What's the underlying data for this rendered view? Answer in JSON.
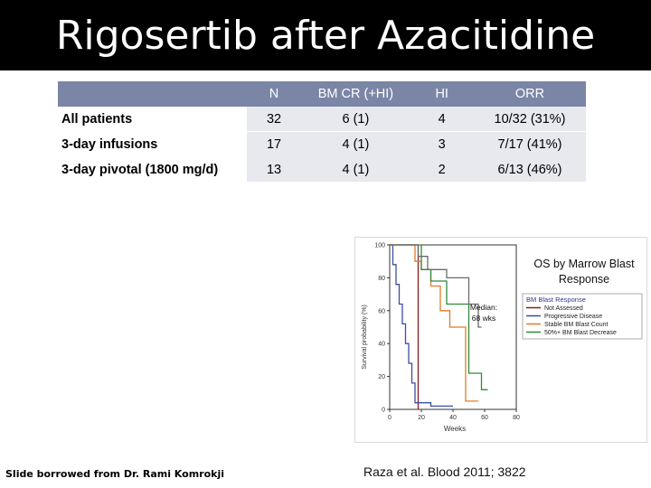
{
  "slide": {
    "title": "Rigosertib after Azacitidine",
    "footer_credit": "Slide borrowed from Dr. Rami Komrokji",
    "citation": "Raza et al. Blood 2011; 3822"
  },
  "table": {
    "headers": [
      "",
      "N",
      "BM CR (+HI)",
      "HI",
      "ORR"
    ],
    "rows": [
      {
        "label": "All patients",
        "n": "32",
        "bm_cr": "6 (1)",
        "hi": "4",
        "orr": "10/32 (31%)"
      },
      {
        "label": "3-day infusions",
        "n": "17",
        "bm_cr": "4 (1)",
        "hi": "3",
        "orr": "7/17 (41%)"
      },
      {
        "label": "3-day pivotal (1800 mg/d)",
        "n": "13",
        "bm_cr": "4 (1)",
        "hi": "2",
        "orr": "6/13 (46%)"
      }
    ],
    "header_color": "#7b86a6"
  },
  "chart_data": {
    "type": "line",
    "title": "OS by Marrow Blast Response",
    "xlabel": "Weeks",
    "ylabel": "Survival probability (%)",
    "xlim": [
      0,
      80
    ],
    "ylim": [
      0,
      100
    ],
    "xticks": [
      "0",
      "20",
      "40",
      "60",
      "80"
    ],
    "yticks": [
      "0",
      "20",
      "40",
      "60",
      "80",
      "100"
    ],
    "annotation": "Median: 68 wks",
    "legend_title": "BM Blast Response",
    "legend_position": "right",
    "series": [
      {
        "name": "Not Assessed",
        "color": "#8b1a1a",
        "x": [
          0,
          18,
          18
        ],
        "y": [
          100,
          100,
          0
        ]
      },
      {
        "name": "Progressive Disease",
        "color": "#3a4fa8",
        "x": [
          0,
          2,
          2,
          4,
          4,
          6,
          6,
          8,
          8,
          10,
          10,
          12,
          12,
          14,
          14,
          16,
          16,
          26,
          26,
          40
        ],
        "y": [
          100,
          100,
          88,
          88,
          76,
          76,
          64,
          64,
          52,
          52,
          40,
          40,
          28,
          28,
          16,
          16,
          4,
          4,
          2,
          2
        ]
      },
      {
        "name": "Stable BM Blast Count",
        "color": "#e07b28",
        "x": [
          0,
          16,
          16,
          20,
          20,
          26,
          26,
          32,
          32,
          38,
          38,
          48,
          48,
          56
        ],
        "y": [
          100,
          100,
          90,
          90,
          85,
          85,
          75,
          75,
          60,
          60,
          50,
          50,
          5,
          5
        ]
      },
      {
        "name": "50%+ BM Blast Decrease",
        "color": "#2e8b3a",
        "x": [
          0,
          20,
          20,
          26,
          26,
          36,
          36,
          50,
          50,
          58,
          58,
          62
        ],
        "y": [
          100,
          100,
          85,
          85,
          78,
          78,
          64,
          64,
          22,
          22,
          12,
          12
        ]
      },
      {
        "name": "",
        "color": "#6b6b6b",
        "x": [
          0,
          18,
          18,
          24,
          24,
          36,
          36,
          50,
          50,
          56,
          56,
          58
        ],
        "y": [
          100,
          100,
          93,
          93,
          85,
          85,
          80,
          80,
          64,
          64,
          50,
          50
        ]
      }
    ]
  }
}
